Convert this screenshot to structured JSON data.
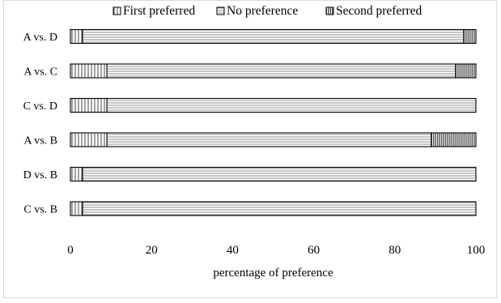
{
  "chart_data": {
    "type": "bar",
    "orientation": "horizontal",
    "stacked": true,
    "title": "",
    "xlabel": "percentage of preference",
    "ylabel": "",
    "xlim": [
      0,
      100
    ],
    "xticks": [
      "0",
      "20",
      "40",
      "60",
      "80",
      "100"
    ],
    "grid": false,
    "legend_position": "top",
    "categories": [
      "A vs. D",
      "A vs. C",
      "C vs. D",
      "A vs. B",
      "D vs. B",
      "C vs. B"
    ],
    "series": [
      {
        "name": "First preferred",
        "pattern": "vertical-lines",
        "values": [
          3,
          9,
          9,
          9,
          3,
          3
        ]
      },
      {
        "name": "No preference",
        "pattern": "horizontal-lines",
        "values": [
          94,
          86,
          91,
          80,
          97,
          97
        ]
      },
      {
        "name": "Second preferred",
        "pattern": "dense-vertical-lines",
        "values": [
          3,
          5,
          0,
          11,
          0,
          0
        ]
      }
    ],
    "colors": {
      "stroke": "#000000",
      "hatch": "#666666",
      "frame": "#d9d9d9"
    }
  }
}
